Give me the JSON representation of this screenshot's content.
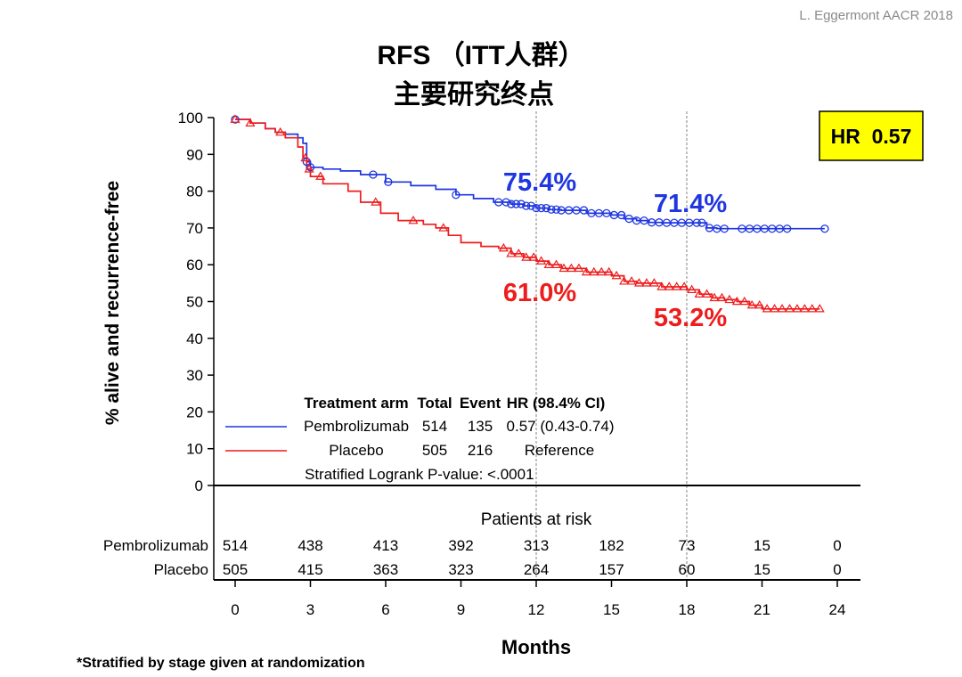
{
  "credit": "L. Eggermont AACR 2018",
  "title_line1": "RFS （ITT人群）",
  "title_line2": "主要研究终点",
  "hr_box": "HR  0.57",
  "footnote": "*Stratified by stage given at randomization",
  "colors": {
    "pembro": "#1f36e0",
    "placebo": "#ee1c1c",
    "hrbox": "#ffff00"
  },
  "chart_data": {
    "type": "line",
    "subtype": "kaplan-meier",
    "xlabel": "Months",
    "ylabel": "% alive and recurrence-free",
    "xlim": [
      0,
      24
    ],
    "ylim": [
      0,
      100
    ],
    "xticks": [
      0,
      3,
      6,
      9,
      12,
      15,
      18,
      21,
      24
    ],
    "yticks": [
      0,
      10,
      20,
      30,
      40,
      50,
      60,
      70,
      80,
      90,
      100
    ],
    "series": [
      {
        "name": "Pembrolizumab",
        "color": "#1f36e0",
        "marker": "circle",
        "x": [
          0,
          0.6,
          1.2,
          1.6,
          2.0,
          2.5,
          2.7,
          2.85,
          3.0,
          3.5,
          4.2,
          5.0,
          6.0,
          7.0,
          8.0,
          8.8,
          9.5,
          10.3,
          11.0,
          11.5,
          12.0,
          12.5,
          13.0,
          14.0,
          15.0,
          15.5,
          16.0,
          16.5,
          17.0,
          17.5,
          18.0,
          18.3,
          18.8,
          19.2,
          20.0,
          21.0,
          22.0,
          23.0,
          23.5
        ],
        "y": [
          99.5,
          98.5,
          97,
          96,
          95.5,
          94.5,
          93,
          88,
          86.5,
          86,
          85.5,
          84.5,
          82.5,
          81.5,
          80.5,
          79,
          78,
          77,
          76.5,
          76,
          75.4,
          75,
          74.8,
          74,
          73.5,
          72.5,
          72,
          71.5,
          71.4,
          71.4,
          71.4,
          71.4,
          70,
          69.8,
          69.8,
          69.8,
          69.8,
          69.8,
          69.8
        ],
        "censor_x": [
          0,
          2.85,
          3.0,
          5.5,
          6.1,
          8.8,
          10.5,
          10.8,
          11.0,
          11.2,
          11.4,
          11.6,
          11.8,
          12.0,
          12.2,
          12.4,
          12.6,
          12.8,
          13.0,
          13.3,
          13.6,
          13.9,
          14.2,
          14.5,
          14.8,
          15.1,
          15.4,
          15.7,
          16.0,
          16.3,
          16.6,
          16.9,
          17.2,
          17.5,
          17.8,
          18.1,
          18.4,
          18.6,
          18.9,
          19.2,
          19.5,
          20.2,
          20.5,
          20.8,
          21.1,
          21.4,
          21.7,
          22.0,
          23.5
        ],
        "landmarks": [
          {
            "month": 12,
            "label": "75.4%"
          },
          {
            "month": 18,
            "label": "71.4%"
          }
        ]
      },
      {
        "name": "Placebo",
        "color": "#ee1c1c",
        "marker": "triangle",
        "x": [
          0,
          0.6,
          1.2,
          1.6,
          2.0,
          2.5,
          2.7,
          2.85,
          3.0,
          3.5,
          4.5,
          5.0,
          5.8,
          6.5,
          7.5,
          8.0,
          8.5,
          9.0,
          9.8,
          10.5,
          11.0,
          11.5,
          12.0,
          12.5,
          13.0,
          14.0,
          15.0,
          15.5,
          16.0,
          17.0,
          18.0,
          18.5,
          19.0,
          19.5,
          20.0,
          20.5,
          21.0,
          21.5,
          22.0,
          23.0,
          23.3
        ],
        "y": [
          99.5,
          98.5,
          97,
          96,
          94.5,
          92,
          89,
          86,
          84,
          82,
          80,
          77,
          74,
          72,
          71,
          70,
          68,
          66,
          65,
          64.5,
          63,
          62,
          61.0,
          60,
          59,
          58,
          57,
          55.5,
          55,
          54,
          53.2,
          52,
          51,
          50.5,
          50,
          49,
          48,
          48,
          48,
          48,
          48
        ],
        "censor_x": [
          0,
          0.6,
          1.8,
          2.8,
          2.95,
          3.4,
          5.6,
          7.1,
          8.3,
          10.7,
          11.0,
          11.3,
          11.6,
          11.9,
          12.2,
          12.5,
          12.8,
          13.1,
          13.4,
          13.7,
          14.0,
          14.3,
          14.6,
          14.9,
          15.2,
          15.5,
          15.8,
          16.1,
          16.4,
          16.7,
          17.0,
          17.3,
          17.6,
          17.9,
          18.2,
          18.5,
          18.8,
          19.1,
          19.4,
          19.7,
          20.0,
          20.3,
          20.6,
          20.9,
          21.2,
          21.5,
          21.8,
          22.1,
          22.4,
          22.7,
          23.0,
          23.3
        ],
        "landmarks": [
          {
            "month": 12,
            "label": "61.0%"
          },
          {
            "month": 18,
            "label": "53.2%"
          }
        ]
      }
    ],
    "legend_table": {
      "headers": [
        "Treatment arm",
        "Total",
        "Event",
        "HR (98.4% CI)"
      ],
      "rows": [
        {
          "arm": "Pembrolizumab",
          "total": "514",
          "event": "135",
          "hr": "0.57 (0.43-0.74)"
        },
        {
          "arm": "Placebo",
          "total": "505",
          "event": "216",
          "hr": "Reference"
        }
      ],
      "pvalue": "Stratified Logrank P-value: <.0001"
    },
    "risk_table": {
      "title": "Patients at risk",
      "rows": [
        {
          "name": "Pembrolizumab",
          "values": [
            "514",
            "438",
            "413",
            "392",
            "313",
            "182",
            "73",
            "15",
            "0"
          ]
        },
        {
          "name": "Placebo",
          "values": [
            "505",
            "415",
            "363",
            "323",
            "264",
            "157",
            "60",
            "15",
            "0"
          ]
        }
      ]
    }
  }
}
